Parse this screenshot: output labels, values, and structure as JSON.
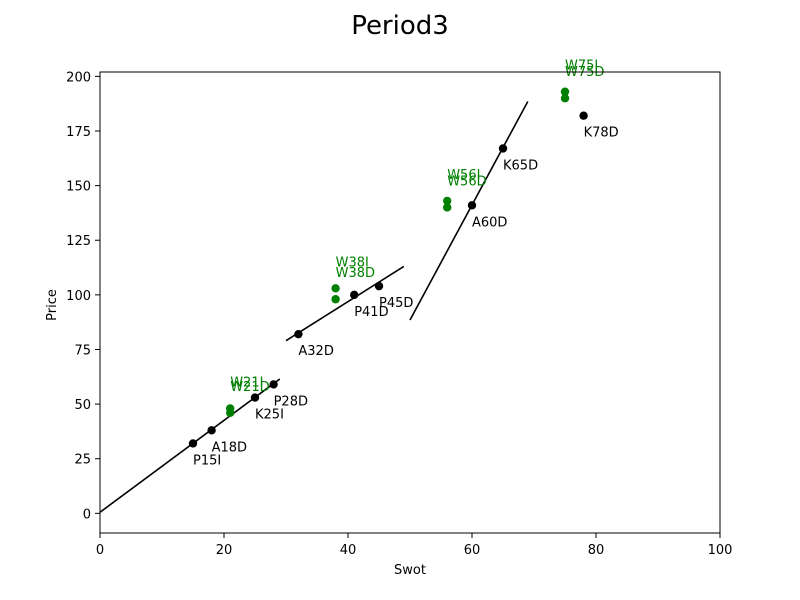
{
  "chart_data": {
    "type": "scatter",
    "title": "Period3",
    "xlabel": "Swot",
    "ylabel": "Price",
    "xlim": [
      0,
      100
    ],
    "ylim": [
      -9,
      202
    ],
    "xticks": [
      0,
      20,
      40,
      60,
      80,
      100
    ],
    "yticks": [
      0,
      25,
      50,
      75,
      100,
      125,
      150,
      175,
      200
    ],
    "grid": false,
    "colors": {
      "black": "#000000",
      "green": "#008000"
    },
    "black_points": [
      {
        "label": "P15I",
        "x": 15,
        "y": 32
      },
      {
        "label": "A18D",
        "x": 18,
        "y": 38
      },
      {
        "label": "K25I",
        "x": 25,
        "y": 53
      },
      {
        "label": "P28D",
        "x": 28,
        "y": 59
      },
      {
        "label": "A32D",
        "x": 32,
        "y": 82
      },
      {
        "label": "P41D",
        "x": 41,
        "y": 100
      },
      {
        "label": "P45D",
        "x": 45,
        "y": 104
      },
      {
        "label": "A60D",
        "x": 60,
        "y": 141
      },
      {
        "label": "K65D",
        "x": 65,
        "y": 167
      },
      {
        "label": "K78D",
        "x": 78,
        "y": 182
      }
    ],
    "green_points": [
      {
        "label": "W21I",
        "x": 21,
        "y": 48
      },
      {
        "label": "W21D",
        "x": 21,
        "y": 46
      },
      {
        "label": "W38I",
        "x": 38,
        "y": 103
      },
      {
        "label": "W38D",
        "x": 38,
        "y": 98
      },
      {
        "label": "W56I",
        "x": 56,
        "y": 143
      },
      {
        "label": "W56D",
        "x": 56,
        "y": 140
      },
      {
        "label": "W75I",
        "x": 75,
        "y": 193
      },
      {
        "label": "W75D",
        "x": 75,
        "y": 190
      }
    ],
    "lines": [
      {
        "x": [
          0,
          29
        ],
        "y": [
          0.5,
          61.5
        ]
      },
      {
        "x": [
          30,
          49
        ],
        "y": [
          79,
          113
        ]
      },
      {
        "x": [
          50,
          69
        ],
        "y": [
          88.5,
          188.5
        ]
      }
    ]
  }
}
